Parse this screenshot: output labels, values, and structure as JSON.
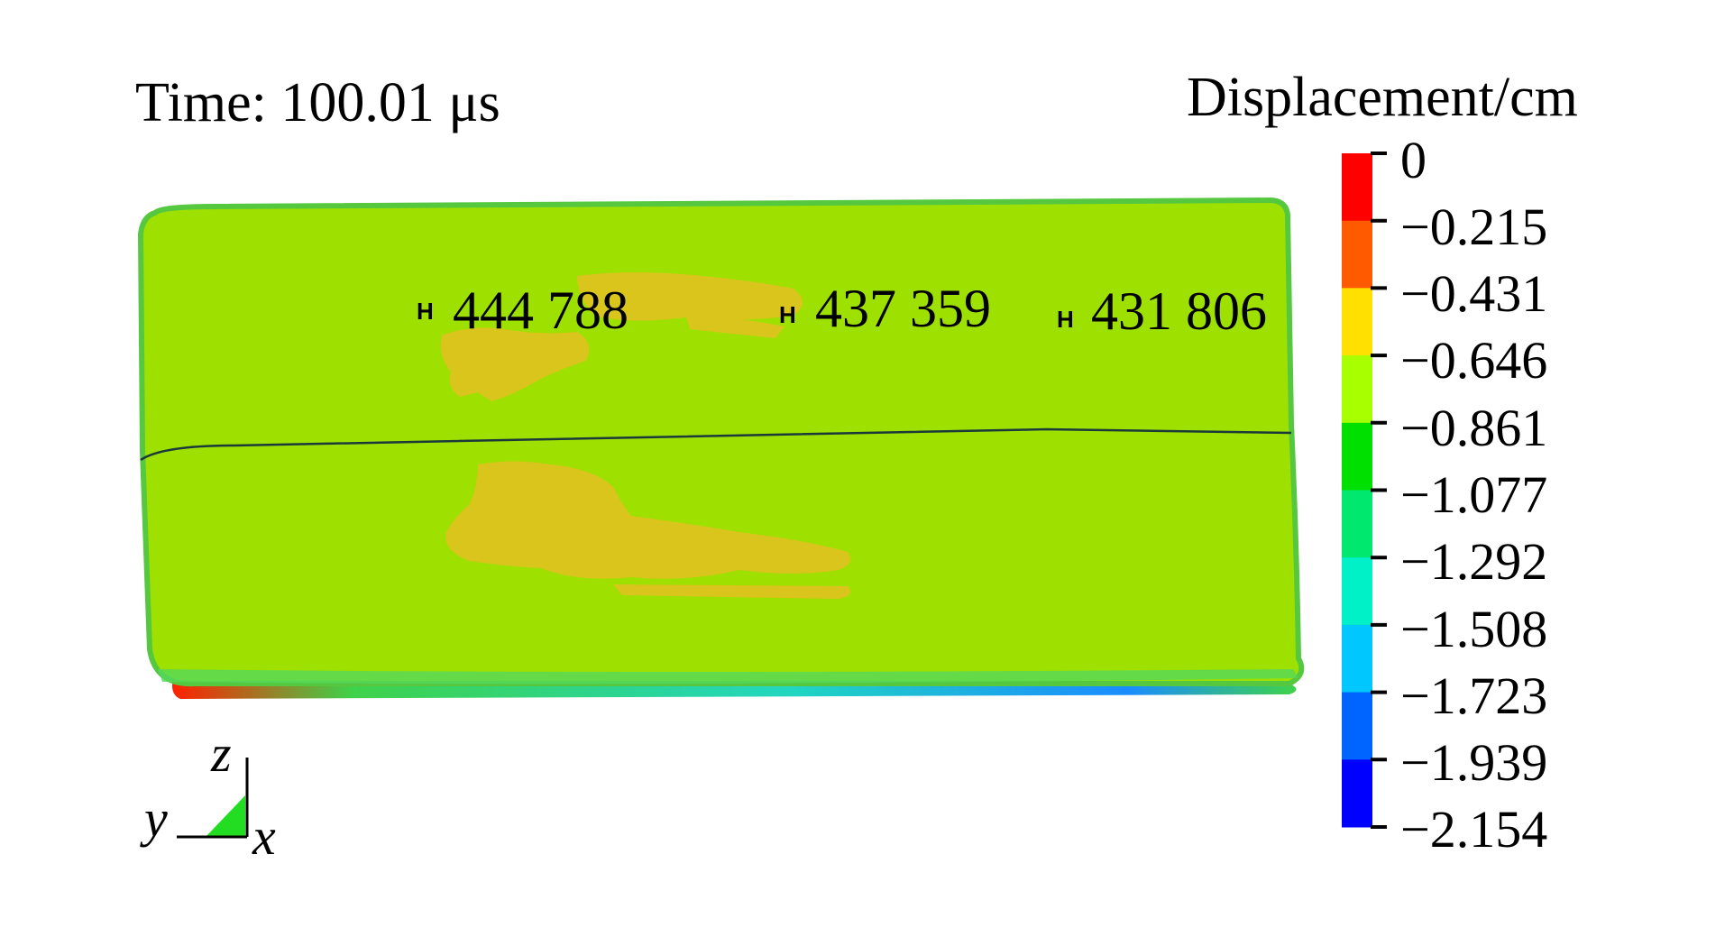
{
  "header": {
    "time_label": "Time: 100.01 μs"
  },
  "legend": {
    "title": "Displacement/cm",
    "ticks": [
      "0",
      "−0.215",
      "−0.431",
      "−0.646",
      "−0.861",
      "−1.077",
      "−1.292",
      "−1.508",
      "−1.723",
      "−1.939",
      "−2.154"
    ],
    "band_colors": [
      "#ff0000",
      "#ff5a00",
      "#ffe000",
      "#a8ff00",
      "#00e000",
      "#00e86e",
      "#00f0c8",
      "#00c8ff",
      "#0064ff",
      "#0000ff"
    ]
  },
  "nodes": [
    {
      "marker": "H",
      "id": "444 788"
    },
    {
      "marker": "H",
      "id": "437 359"
    },
    {
      "marker": "H",
      "id": "431 806"
    }
  ],
  "axes_triad": {
    "z": "z",
    "y": "y",
    "x": "x"
  },
  "colors": {
    "plate_main": "#9ee000",
    "plate_hotspot": "#d9c51c",
    "plate_edge_green": "#3fd24a",
    "plate_edge_cyan": "#20d6c0",
    "plate_edge_red": "#ff2000",
    "plate_edge_blue": "#1060ff"
  }
}
